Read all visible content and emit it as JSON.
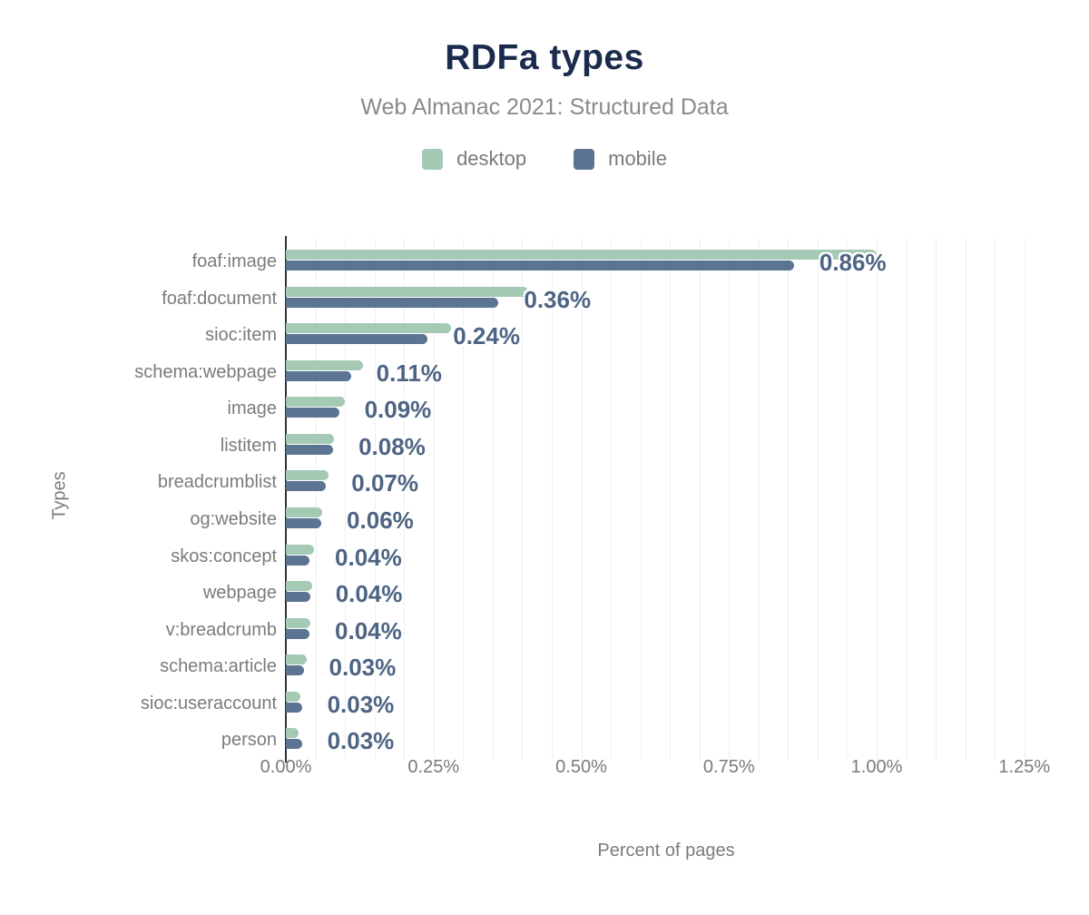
{
  "header": {
    "title": "RDFa types",
    "subtitle": "Web Almanac 2021: Structured Data"
  },
  "axes": {
    "x_title": "Percent of pages",
    "y_title": "Types",
    "x_ticks": [
      "0.00%",
      "0.25%",
      "0.50%",
      "0.75%",
      "1.00%",
      "1.25%"
    ],
    "x_tick_values": [
      0,
      0.25,
      0.5,
      0.75,
      1.0,
      1.25
    ]
  },
  "colors": {
    "title": "#1b2b4d",
    "subtitle": "#8a8a8a",
    "axis_text": "#7b7b7b",
    "annotation_text": "#4e6483",
    "axis_line": "#333333",
    "gridline": "#ecf1ee",
    "desktop": "#a4c9b5",
    "mobile": "#5b7492"
  },
  "chart_data": {
    "type": "bar",
    "orientation": "horizontal",
    "title": "RDFa types",
    "subtitle": "Web Almanac 2021: Structured Data",
    "xlabel": "Percent of pages",
    "ylabel": "Types",
    "xlim": [
      0,
      1.25
    ],
    "grid": true,
    "legend_position": "top",
    "categories": [
      "foaf:image",
      "foaf:document",
      "sioc:item",
      "schema:webpage",
      "image",
      "listitem",
      "breadcrumblist",
      "og:website",
      "skos:concept",
      "webpage",
      "v:breadcrumb",
      "schema:article",
      "sioc:useraccount",
      "person"
    ],
    "series": [
      {
        "name": "desktop",
        "color": "#a4c9b5",
        "values": [
          1.0,
          0.41,
          0.28,
          0.13,
          0.1,
          0.082,
          0.072,
          0.062,
          0.047,
          0.044,
          0.042,
          0.036,
          0.024,
          0.022
        ]
      },
      {
        "name": "mobile",
        "color": "#5b7492",
        "values": [
          0.86,
          0.36,
          0.24,
          0.11,
          0.09,
          0.08,
          0.068,
          0.06,
          0.04,
          0.041,
          0.04,
          0.03,
          0.027,
          0.027
        ]
      }
    ],
    "annotations": [
      "0.86%",
      "0.36%",
      "0.24%",
      "0.11%",
      "0.09%",
      "0.08%",
      "0.07%",
      "0.06%",
      "0.04%",
      "0.04%",
      "0.04%",
      "0.03%",
      "0.03%",
      "0.03%"
    ],
    "annotation_series": "mobile"
  }
}
